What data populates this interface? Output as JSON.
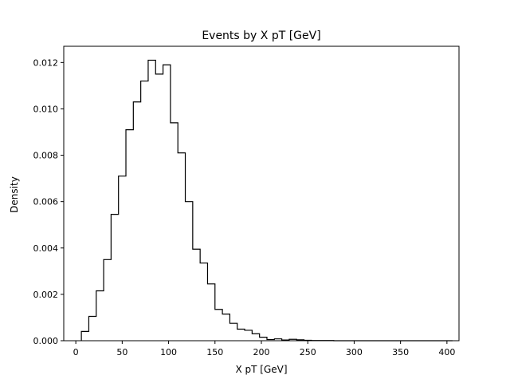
{
  "chart_data": {
    "type": "histogram",
    "title": "Events by X pT [GeV]",
    "xlabel": "X pT [GeV]",
    "ylabel": "Density",
    "xlim": [
      -13,
      413
    ],
    "ylim": [
      0,
      0.0127
    ],
    "xticks": [
      0,
      50,
      100,
      150,
      200,
      250,
      300,
      350,
      400
    ],
    "yticks": [
      0.0,
      0.002,
      0.004,
      0.006,
      0.008,
      0.01,
      0.012
    ],
    "xtick_labels": [
      "0",
      "50",
      "100",
      "150",
      "200",
      "250",
      "300",
      "350",
      "400"
    ],
    "ytick_labels": [
      "0.000",
      "0.002",
      "0.004",
      "0.006",
      "0.008",
      "0.010",
      "0.012"
    ],
    "grid": false,
    "line_color": "#000000",
    "bin_edges": [
      6.0,
      14.0,
      22.0,
      30.0,
      38.0,
      46.0,
      54.0,
      62.0,
      70.0,
      78.0,
      86.0,
      94.0,
      102.0,
      110.0,
      118.0,
      126.0,
      134.0,
      142.0,
      150.0,
      158.0,
      166.0,
      174.0,
      182.0,
      190.0,
      198.0,
      206.0,
      214.0,
      222.0,
      230.0,
      238.0,
      246.0,
      254.0,
      262.0,
      270.0,
      278.0,
      286.0,
      294.0,
      302.0,
      310.0,
      318.0,
      326.0,
      334.0,
      342.0,
      350.0,
      358.0,
      366.0,
      374.0,
      382.0,
      390.0,
      398.0,
      406.0
    ],
    "values": [
      0.0004,
      0.00105,
      0.00215,
      0.0035,
      0.00545,
      0.0071,
      0.0091,
      0.0103,
      0.0112,
      0.0121,
      0.0115,
      0.0119,
      0.0094,
      0.0081,
      0.006,
      0.00395,
      0.00335,
      0.00245,
      0.00135,
      0.00115,
      0.00075,
      0.0005,
      0.00045,
      0.0003,
      0.00015,
      5e-05,
      8e-05,
      3e-05,
      6e-05,
      4e-05,
      2e-05,
      1e-05,
      1e-05,
      1e-05,
      0.0,
      0.0,
      0.0,
      0.0,
      0.0,
      0.0,
      0.0,
      0.0,
      0.0,
      0.0,
      0.0,
      0.0,
      0.0,
      0.0,
      0.0,
      0.0
    ]
  }
}
